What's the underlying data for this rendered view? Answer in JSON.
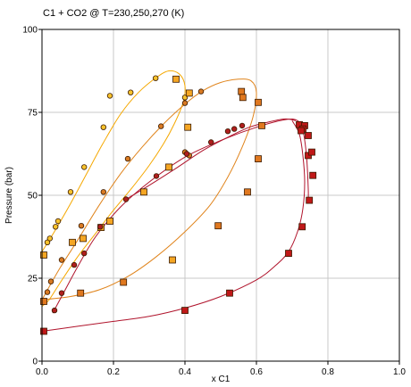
{
  "chart_data": {
    "type": "scatter",
    "title": "C1 + CO2 @ T=230,250,270 (K)",
    "xlabel": "x C1",
    "ylabel": "Pressure (bar)",
    "xlim": [
      0,
      1
    ],
    "ylim": [
      0,
      100
    ],
    "xticks": [
      "0.0",
      "0.2",
      "0.4",
      "0.6",
      "0.8",
      "1.0"
    ],
    "xtick_values": [
      0,
      0.2,
      0.4,
      0.6,
      0.8,
      1.0
    ],
    "yticks": [
      "0",
      "25",
      "50",
      "75",
      "100"
    ],
    "ytick_values": [
      0,
      25,
      50,
      75,
      100
    ],
    "grid": true,
    "legend": "none",
    "series": [
      {
        "marker": "circle",
        "color": "#f7c22b",
        "line_color": "#f5a800",
        "points": [
          [
            0.015,
            35.8
          ],
          [
            0.022,
            37.0
          ],
          [
            0.038,
            40.5
          ],
          [
            0.045,
            42.2
          ],
          [
            0.08,
            51.0
          ],
          [
            0.118,
            58.5
          ],
          [
            0.172,
            70.5
          ],
          [
            0.19,
            80.0
          ],
          [
            0.248,
            81.0
          ],
          [
            0.318,
            85.3
          ],
          [
            0.4,
            79.5
          ]
        ],
        "curve": [
          [
            0.0,
            33.0
          ],
          [
            0.04,
            40.0
          ],
          [
            0.08,
            47.5
          ],
          [
            0.12,
            55.5
          ],
          [
            0.17,
            65.5
          ],
          [
            0.22,
            74.5
          ],
          [
            0.27,
            81.0
          ],
          [
            0.32,
            85.5
          ],
          [
            0.355,
            87.5
          ],
          [
            0.385,
            86.5
          ],
          [
            0.4,
            83.0
          ],
          [
            0.395,
            78.0
          ],
          [
            0.37,
            71.5
          ],
          [
            0.34,
            65.5
          ],
          [
            0.3,
            59.0
          ],
          [
            0.25,
            52.0
          ],
          [
            0.2,
            45.5
          ],
          [
            0.15,
            38.5
          ],
          [
            0.1,
            31.5
          ],
          [
            0.05,
            23.5
          ],
          [
            0.02,
            18.5
          ],
          [
            0.0,
            16.5
          ]
        ]
      },
      {
        "marker": "circle",
        "color": "#d97a22",
        "line_color": "#e0841c",
        "points": [
          [
            0.015,
            20.8
          ],
          [
            0.025,
            24.0
          ],
          [
            0.055,
            30.5
          ],
          [
            0.11,
            40.8
          ],
          [
            0.172,
            51.0
          ],
          [
            0.24,
            61.0
          ],
          [
            0.333,
            70.8
          ],
          [
            0.4,
            77.8
          ],
          [
            0.445,
            81.3
          ],
          [
            0.412,
            62.0
          ],
          [
            0.4,
            63.0
          ]
        ],
        "curve": [
          [
            0.0,
            18.5
          ],
          [
            0.05,
            28.0
          ],
          [
            0.1,
            36.5
          ],
          [
            0.16,
            47.0
          ],
          [
            0.22,
            56.5
          ],
          [
            0.28,
            64.5
          ],
          [
            0.34,
            71.5
          ],
          [
            0.4,
            77.5
          ],
          [
            0.45,
            81.5
          ],
          [
            0.5,
            84.0
          ],
          [
            0.55,
            85.0
          ],
          [
            0.585,
            84.5
          ],
          [
            0.6,
            81.0
          ],
          [
            0.59,
            73.5
          ],
          [
            0.56,
            64.5
          ],
          [
            0.52,
            55.5
          ],
          [
            0.47,
            47.0
          ],
          [
            0.4,
            39.0
          ],
          [
            0.32,
            31.5
          ],
          [
            0.24,
            25.5
          ],
          [
            0.16,
            21.5
          ],
          [
            0.08,
            19.5
          ],
          [
            0.0,
            18.5
          ]
        ]
      },
      {
        "marker": "square",
        "color": "#f5a623",
        "points": [
          [
            0.005,
            32.0
          ],
          [
            0.085,
            35.8
          ],
          [
            0.115,
            37.0
          ],
          [
            0.165,
            40.3
          ],
          [
            0.19,
            42.2
          ],
          [
            0.285,
            51.0
          ],
          [
            0.355,
            58.5
          ],
          [
            0.365,
            30.5
          ],
          [
            0.375,
            85.0
          ],
          [
            0.408,
            70.5
          ],
          [
            0.412,
            80.8
          ]
        ]
      },
      {
        "marker": "square",
        "color": "#e0781f",
        "points": [
          [
            0.005,
            18.0
          ],
          [
            0.108,
            20.5
          ],
          [
            0.228,
            23.8
          ],
          [
            0.493,
            40.8
          ],
          [
            0.558,
            81.3
          ],
          [
            0.562,
            79.5
          ],
          [
            0.575,
            51.0
          ],
          [
            0.605,
            78.0
          ],
          [
            0.605,
            61.0
          ],
          [
            0.615,
            71.0
          ]
        ]
      },
      {
        "marker": "circle",
        "color": "#b01e1e",
        "line_color": "#b0142c",
        "points": [
          [
            0.035,
            15.3
          ],
          [
            0.055,
            20.5
          ],
          [
            0.09,
            29.0
          ],
          [
            0.118,
            32.5
          ],
          [
            0.163,
            40.5
          ],
          [
            0.235,
            48.8
          ],
          [
            0.32,
            55.8
          ],
          [
            0.405,
            62.5
          ],
          [
            0.473,
            66.0
          ],
          [
            0.52,
            69.3
          ],
          [
            0.538,
            70.0
          ],
          [
            0.56,
            71.0
          ]
        ],
        "curve": [
          [
            0.03,
            14.5
          ],
          [
            0.06,
            20.5
          ],
          [
            0.1,
            28.5
          ],
          [
            0.15,
            37.5
          ],
          [
            0.22,
            46.5
          ],
          [
            0.3,
            54.0
          ],
          [
            0.4,
            61.5
          ],
          [
            0.5,
            66.5
          ],
          [
            0.6,
            70.5
          ],
          [
            0.68,
            72.8
          ],
          [
            0.715,
            72.5
          ],
          [
            0.73,
            69.5
          ],
          [
            0.74,
            62.0
          ],
          [
            0.745,
            52.0
          ],
          [
            0.745,
            48.5
          ]
        ]
      },
      {
        "marker": "square",
        "color": "#c01818",
        "points": [
          [
            0.005,
            9.0
          ],
          [
            0.4,
            15.3
          ],
          [
            0.525,
            20.5
          ],
          [
            0.69,
            32.5
          ],
          [
            0.728,
            40.5
          ],
          [
            0.748,
            48.5
          ],
          [
            0.758,
            56.0
          ],
          [
            0.745,
            62.0
          ],
          [
            0.755,
            63.0
          ],
          [
            0.745,
            68.0
          ],
          [
            0.72,
            71.3
          ],
          [
            0.735,
            71.0
          ],
          [
            0.73,
            70.0
          ],
          [
            0.725,
            69.5
          ]
        ]
      }
    ],
    "extra_curves": [
      {
        "color": "#b0142c",
        "curve": [
          [
            0.0,
            9.0
          ],
          [
            0.1,
            10.5
          ],
          [
            0.2,
            12.0
          ],
          [
            0.3,
            13.5
          ],
          [
            0.4,
            16.0
          ],
          [
            0.5,
            19.5
          ],
          [
            0.6,
            24.5
          ],
          [
            0.65,
            28.5
          ],
          [
            0.69,
            33.0
          ],
          [
            0.715,
            39.0
          ],
          [
            0.73,
            46.0
          ],
          [
            0.735,
            54.0
          ],
          [
            0.73,
            62.0
          ],
          [
            0.72,
            68.5
          ],
          [
            0.7,
            72.5
          ]
        ]
      },
      {
        "color": "#b0142c",
        "curve": [
          [
            0.235,
            48.8
          ],
          [
            0.3,
            53.0
          ],
          [
            0.38,
            58.5
          ],
          [
            0.45,
            63.5
          ],
          [
            0.52,
            67.5
          ],
          [
            0.58,
            70.5
          ],
          [
            0.63,
            72.0
          ],
          [
            0.68,
            73.0
          ],
          [
            0.71,
            72.5
          ]
        ]
      }
    ]
  }
}
